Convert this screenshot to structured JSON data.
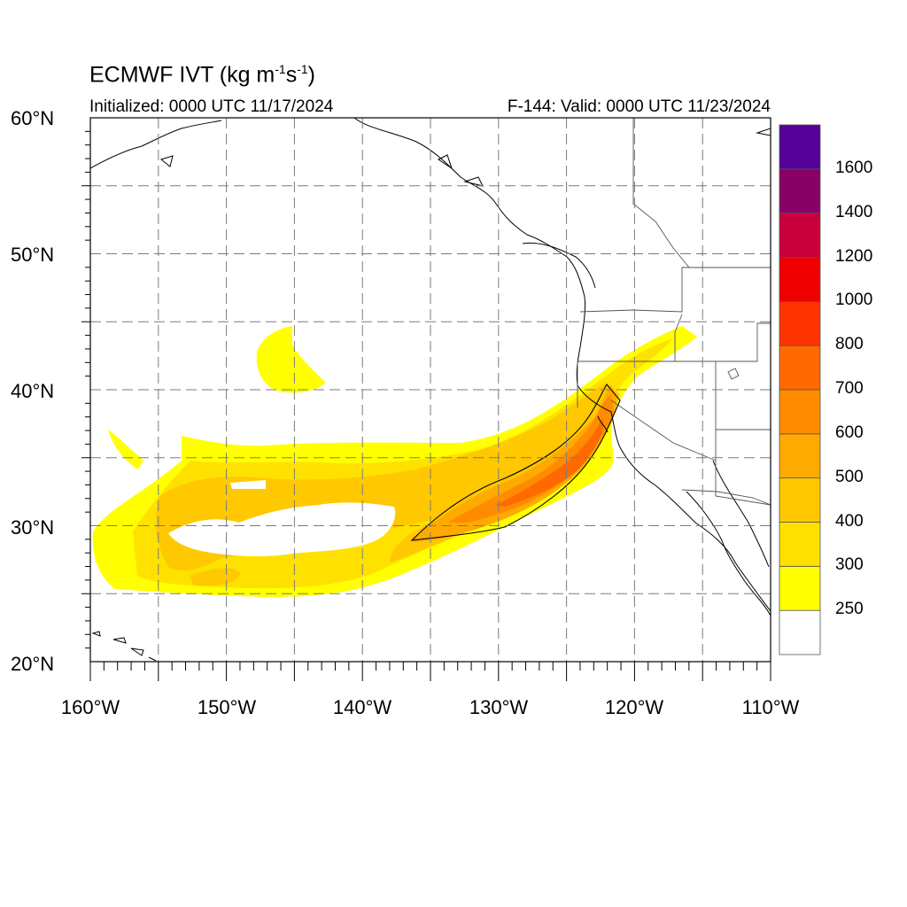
{
  "title": {
    "main": "ECMWF IVT (kg m",
    "sup1": "-1",
    "mid": "s",
    "sup2": "-1",
    "end": ")"
  },
  "initialized": "Initialized: 0000 UTC 11/17/2024",
  "valid": "F-144: Valid: 0000 UTC 11/23/2024",
  "lat_labels": [
    "60°N",
    "50°N",
    "40°N",
    "30°N",
    "20°N"
  ],
  "lon_labels": [
    "160°W",
    "150°W",
    "140°W",
    "130°W",
    "120°W",
    "110°W"
  ],
  "map_extent": {
    "lon": [
      -160,
      -110
    ],
    "lat": [
      20,
      60
    ]
  },
  "colorbar": {
    "labels": [
      "250",
      "300",
      "400",
      "500",
      "600",
      "700",
      "800",
      "1000",
      "1200",
      "1400",
      "1600"
    ],
    "colors": [
      "#ffffff",
      "#ffff00",
      "#ffe100",
      "#ffc800",
      "#ffaa00",
      "#ff8c00",
      "#ff6a00",
      "#ff3300",
      "#ee0000",
      "#c8003c",
      "#880066",
      "#550099"
    ]
  },
  "colors": {
    "coast": "#000000",
    "grid": "#7a7a7a",
    "border": "#888888"
  }
}
